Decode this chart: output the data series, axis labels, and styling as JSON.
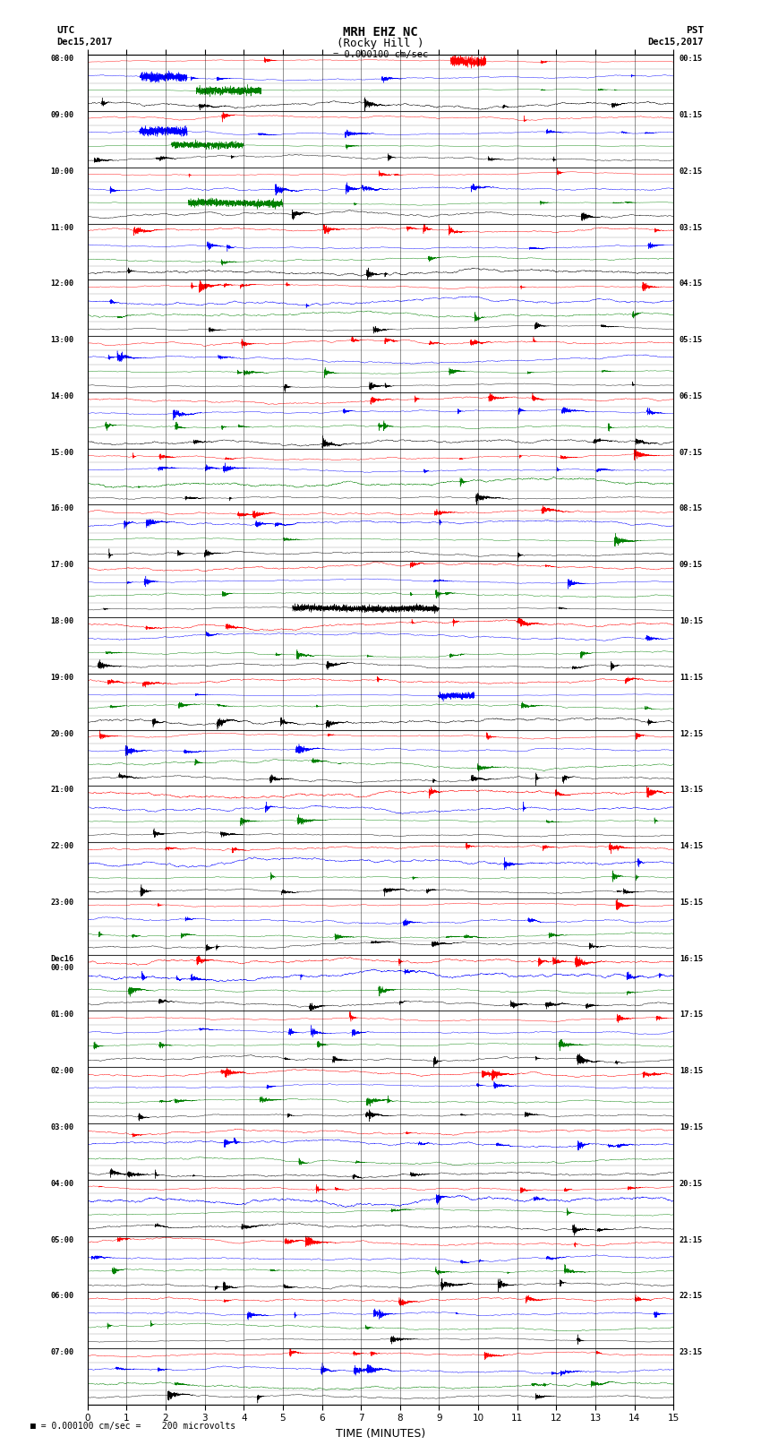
{
  "title_line1": "MRH EHZ NC",
  "title_line2": "(Rocky Hill )",
  "scale_text": "= 0.000100 cm/sec",
  "bottom_text": "= 0.000100 cm/sec =    200 microvolts",
  "xlabel": "TIME (MINUTES)",
  "left_header": [
    "UTC",
    "Dec15,2017"
  ],
  "right_header": [
    "PST",
    "Dec15,2017"
  ],
  "utc_labels": [
    "08:00",
    "09:00",
    "10:00",
    "11:00",
    "12:00",
    "13:00",
    "14:00",
    "15:00",
    "16:00",
    "17:00",
    "18:00",
    "19:00",
    "20:00",
    "21:00",
    "22:00",
    "23:00",
    "Dec16\n00:00",
    "01:00",
    "02:00",
    "03:00",
    "04:00",
    "05:00",
    "06:00",
    "07:00"
  ],
  "pst_labels": [
    "00:15",
    "01:15",
    "02:15",
    "03:15",
    "04:15",
    "05:15",
    "06:15",
    "07:15",
    "08:15",
    "09:15",
    "10:15",
    "11:15",
    "12:15",
    "13:15",
    "14:15",
    "15:15",
    "16:15",
    "17:15",
    "18:15",
    "19:15",
    "20:15",
    "21:15",
    "22:15",
    "23:15"
  ],
  "n_hour_rows": 24,
  "n_sub_per_hour": 4,
  "trace_minutes": 15,
  "colors": [
    "red",
    "blue",
    "green",
    "black"
  ],
  "fig_width": 8.5,
  "fig_height": 16.13,
  "dpi": 100
}
